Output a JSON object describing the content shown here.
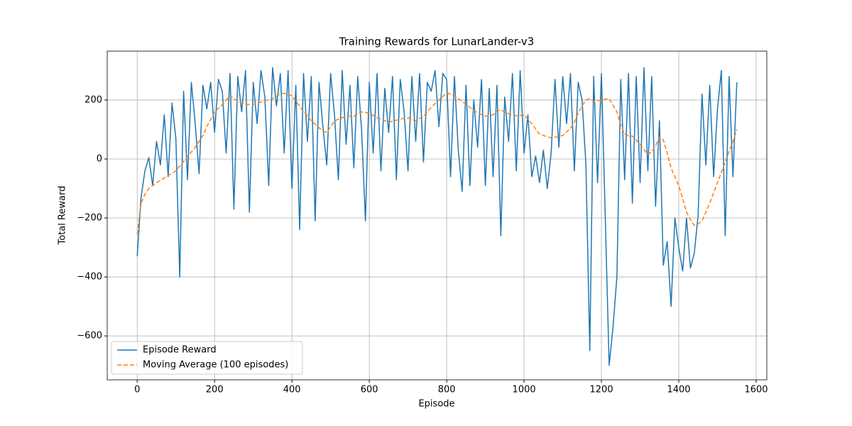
{
  "chart_data": {
    "type": "line",
    "title": "Training Rewards for LunarLander-v3",
    "x_label": "Episode",
    "y_label": "Total Reward",
    "x": [
      0,
      10,
      20,
      30,
      40,
      50,
      60,
      70,
      80,
      90,
      100,
      110,
      120,
      130,
      140,
      150,
      160,
      170,
      180,
      190,
      200,
      210,
      220,
      230,
      240,
      250,
      260,
      270,
      280,
      290,
      300,
      310,
      320,
      330,
      340,
      350,
      360,
      370,
      380,
      390,
      400,
      410,
      420,
      430,
      440,
      450,
      460,
      470,
      480,
      490,
      500,
      510,
      520,
      530,
      540,
      550,
      560,
      570,
      580,
      590,
      600,
      610,
      620,
      630,
      640,
      650,
      660,
      670,
      680,
      690,
      700,
      710,
      720,
      730,
      740,
      750,
      760,
      770,
      780,
      790,
      800,
      810,
      820,
      830,
      840,
      850,
      860,
      870,
      880,
      890,
      900,
      910,
      920,
      930,
      940,
      950,
      960,
      970,
      980,
      990,
      1000,
      1010,
      1020,
      1030,
      1040,
      1050,
      1060,
      1070,
      1080,
      1090,
      1100,
      1110,
      1120,
      1130,
      1140,
      1150,
      1160,
      1170,
      1180,
      1190,
      1200,
      1210,
      1220,
      1230,
      1240,
      1250,
      1260,
      1270,
      1280,
      1290,
      1300,
      1310,
      1320,
      1330,
      1340,
      1350,
      1360,
      1370,
      1380,
      1390,
      1400,
      1410,
      1420,
      1430,
      1440,
      1450,
      1460,
      1470,
      1480,
      1490,
      1500,
      1510,
      1520,
      1530,
      1540,
      1550
    ],
    "series": [
      {
        "name": "Episode Reward",
        "color": "#1f77b4",
        "linestyle": "solid",
        "values": [
          -330,
          -130,
          -40,
          5,
          -90,
          60,
          -20,
          150,
          -60,
          190,
          70,
          -400,
          230,
          -70,
          260,
          120,
          -50,
          250,
          170,
          260,
          90,
          270,
          230,
          20,
          290,
          -170,
          280,
          160,
          300,
          -180,
          260,
          120,
          300,
          210,
          -90,
          310,
          180,
          290,
          20,
          300,
          -100,
          250,
          -240,
          290,
          60,
          280,
          -210,
          260,
          110,
          -20,
          290,
          150,
          -70,
          300,
          50,
          250,
          -30,
          280,
          100,
          -210,
          260,
          20,
          290,
          -40,
          240,
          90,
          280,
          -70,
          270,
          160,
          -40,
          280,
          60,
          290,
          -10,
          260,
          230,
          300,
          110,
          290,
          270,
          -60,
          280,
          30,
          -110,
          250,
          -90,
          200,
          40,
          270,
          -90,
          240,
          -60,
          250,
          -260,
          210,
          60,
          290,
          -40,
          300,
          20,
          150,
          -60,
          10,
          -80,
          30,
          -100,
          20,
          270,
          40,
          280,
          120,
          290,
          -40,
          260,
          200,
          -20,
          -650,
          280,
          -80,
          290,
          -200,
          -700,
          -570,
          -400,
          270,
          -70,
          290,
          -150,
          280,
          -80,
          310,
          -40,
          280,
          -160,
          130,
          -360,
          -280,
          -500,
          -200,
          -300,
          -380,
          -200,
          -370,
          -320,
          -190,
          220,
          -20,
          250,
          -60,
          170,
          300,
          -260,
          280,
          -60,
          260
        ]
      },
      {
        "name": "Moving Average (100 episodes)",
        "color": "#ff7f0e",
        "linestyle": "dashed",
        "values": [
          -255,
          -150,
          -120,
          -100,
          -90,
          -80,
          -72,
          -64,
          -56,
          -48,
          -40,
          -24,
          -8,
          8,
          24,
          40,
          60,
          80,
          110,
          135,
          160,
          172,
          184,
          200,
          215,
          205,
          195,
          190,
          185,
          185,
          185,
          189,
          193,
          197,
          201,
          205,
          213,
          221,
          223,
          219,
          215,
          197,
          179,
          162,
          146,
          130,
          118,
          106,
          95,
          90,
          110,
          130,
          135,
          140,
          145,
          145,
          145,
          152,
          160,
          158,
          155,
          148,
          140,
          135,
          130,
          125,
          128,
          132,
          135,
          138,
          140,
          135,
          130,
          138,
          145,
          160,
          175,
          188,
          200,
          212,
          225,
          220,
          214,
          205,
          195,
          185,
          175,
          165,
          157,
          151,
          145,
          148,
          150,
          163,
          167,
          160,
          154,
          148,
          147,
          148,
          150,
          135,
          120,
          102,
          85,
          80,
          75,
          72,
          74,
          77,
          80,
          92,
          104,
          125,
          155,
          180,
          200,
          205,
          195,
          198,
          200,
          203,
          205,
          183,
          160,
          115,
          85,
          78,
          78,
          65,
          50,
          32,
          15,
          25,
          45,
          75,
          65,
          20,
          -30,
          -60,
          -90,
          -135,
          -180,
          -205,
          -225,
          -220,
          -210,
          -180,
          -150,
          -115,
          -80,
          -45,
          -10,
          25,
          60,
          100
        ]
      }
    ],
    "xlim": [
      -77.5,
      1627.5
    ],
    "ylim": [
      -749,
      366
    ],
    "xticks": [
      0,
      200,
      400,
      600,
      800,
      1000,
      1200,
      1400,
      1600
    ],
    "yticks": [
      {
        "value": -600,
        "label": "−600"
      },
      {
        "value": -400,
        "label": "−400"
      },
      {
        "value": -200,
        "label": "−200"
      },
      0,
      200
    ],
    "grid": true,
    "legend": "lower left"
  }
}
